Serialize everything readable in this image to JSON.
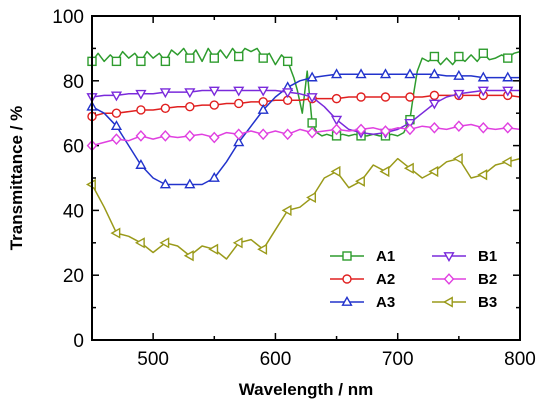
{
  "chart_data": {
    "type": "line",
    "xlabel": "Wavelength / nm",
    "ylabel": "Transmittance / %",
    "xlim": [
      450,
      800
    ],
    "ylim": [
      0,
      100
    ],
    "xticks": [
      500,
      600,
      700,
      800
    ],
    "yticks": [
      0,
      20,
      40,
      60,
      80,
      100
    ],
    "legend_position": "bottom-right",
    "grid": false,
    "series": [
      {
        "name": "A1",
        "color": "#2e9c2e",
        "marker": "square",
        "x": [
          450,
          455,
          460,
          465,
          470,
          475,
          480,
          485,
          490,
          495,
          500,
          505,
          510,
          515,
          520,
          525,
          530,
          535,
          540,
          545,
          550,
          555,
          560,
          565,
          570,
          575,
          580,
          585,
          590,
          595,
          600,
          605,
          610,
          615,
          618,
          622,
          626,
          630,
          634,
          638,
          642,
          646,
          650,
          655,
          660,
          665,
          670,
          675,
          680,
          685,
          690,
          695,
          700,
          705,
          710,
          713,
          716,
          720,
          725,
          730,
          735,
          740,
          745,
          750,
          755,
          760,
          765,
          770,
          775,
          780,
          785,
          790,
          795,
          800
        ],
        "y": [
          86,
          88.5,
          86,
          88,
          86,
          89,
          87,
          88.5,
          86,
          89,
          87,
          88.5,
          86,
          89.5,
          88,
          90,
          87,
          89.5,
          86,
          90,
          87,
          89.5,
          87,
          90,
          87.5,
          90,
          89,
          90,
          87,
          88.5,
          85,
          88,
          86,
          81,
          77,
          70,
          83,
          67,
          64,
          63,
          63.5,
          63,
          63,
          63.5,
          63,
          63.5,
          63,
          63,
          63.5,
          63,
          63,
          63.5,
          63,
          64,
          68,
          76,
          83,
          87,
          86,
          87.5,
          85,
          87,
          85,
          87.5,
          86,
          88,
          86,
          88.5,
          86.5,
          87,
          88,
          87,
          88.5,
          89
        ]
      },
      {
        "name": "A2",
        "color": "#e02020",
        "marker": "circle",
        "x": [
          450,
          460,
          470,
          480,
          490,
          500,
          510,
          520,
          530,
          540,
          550,
          560,
          570,
          580,
          590,
          600,
          610,
          620,
          630,
          640,
          650,
          660,
          670,
          680,
          690,
          700,
          710,
          720,
          730,
          740,
          750,
          760,
          770,
          780,
          790,
          800
        ],
        "y": [
          69,
          70,
          70,
          70.5,
          71,
          71,
          71.5,
          72,
          72,
          72.5,
          72.5,
          73,
          73,
          73.5,
          73.5,
          74,
          74,
          74,
          74.5,
          74.5,
          74.5,
          75,
          75,
          75,
          75,
          75,
          75,
          75,
          75.5,
          75.5,
          75.5,
          75.5,
          75.5,
          75.5,
          75.5,
          75
        ]
      },
      {
        "name": "A3",
        "color": "#2233cc",
        "marker": "triangle-up",
        "x": [
          450,
          460,
          470,
          480,
          490,
          500,
          510,
          520,
          530,
          540,
          550,
          560,
          570,
          580,
          590,
          600,
          610,
          620,
          630,
          640,
          650,
          660,
          670,
          680,
          690,
          700,
          710,
          720,
          730,
          740,
          750,
          760,
          770,
          780,
          790,
          800
        ],
        "y": [
          72,
          70,
          66,
          60,
          54,
          50,
          48,
          48,
          48,
          48,
          50,
          55,
          61,
          66,
          71,
          75,
          78,
          80,
          81,
          81.5,
          82,
          82,
          82,
          82,
          82,
          82,
          82,
          82,
          82,
          81.5,
          81.5,
          81.5,
          81,
          81,
          81,
          81
        ]
      },
      {
        "name": "B1",
        "color": "#7a2adb",
        "marker": "triangle-down",
        "x": [
          450,
          460,
          470,
          480,
          490,
          500,
          510,
          520,
          530,
          540,
          550,
          560,
          570,
          580,
          590,
          600,
          610,
          620,
          630,
          640,
          650,
          660,
          670,
          680,
          690,
          700,
          710,
          720,
          730,
          740,
          750,
          760,
          770,
          780,
          790,
          800
        ],
        "y": [
          75,
          75.5,
          75.5,
          76,
          76,
          76,
          76.5,
          76.5,
          76.5,
          77,
          77,
          77,
          77,
          77,
          77,
          77,
          76.5,
          76,
          75,
          72,
          68,
          65,
          64,
          63.5,
          64,
          65,
          67,
          70,
          73,
          75,
          76,
          76.5,
          77,
          77,
          77,
          77
        ]
      },
      {
        "name": "B2",
        "color": "#e040e0",
        "marker": "diamond",
        "x": [
          450,
          460,
          470,
          480,
          490,
          500,
          510,
          520,
          530,
          540,
          550,
          560,
          570,
          580,
          590,
          600,
          610,
          620,
          630,
          640,
          650,
          660,
          670,
          680,
          690,
          700,
          710,
          720,
          730,
          740,
          750,
          760,
          770,
          780,
          790,
          800
        ],
        "y": [
          60,
          61,
          62,
          61.5,
          63,
          62,
          63,
          62.5,
          63,
          63.5,
          62.5,
          64,
          63.5,
          64.5,
          63.5,
          64.5,
          63.5,
          65,
          64,
          64.5,
          65,
          64.5,
          65,
          65.5,
          64.5,
          65.5,
          65,
          66,
          65.5,
          65,
          66,
          66.5,
          65.5,
          65,
          65.5,
          65
        ]
      },
      {
        "name": "B3",
        "color": "#9a9a1a",
        "marker": "triangle-left",
        "x": [
          450,
          460,
          470,
          480,
          490,
          500,
          510,
          520,
          530,
          540,
          550,
          560,
          570,
          580,
          590,
          600,
          610,
          620,
          630,
          640,
          650,
          660,
          670,
          680,
          690,
          700,
          710,
          720,
          730,
          740,
          750,
          760,
          770,
          780,
          790,
          800
        ],
        "y": [
          48,
          41,
          33,
          32,
          30,
          27,
          30,
          29,
          26,
          29,
          28,
          25,
          30,
          31,
          28,
          34,
          40,
          41,
          44,
          50,
          52,
          47,
          49,
          54,
          52,
          56,
          53,
          50,
          52,
          55,
          56,
          50,
          51,
          54,
          55,
          56
        ]
      }
    ]
  }
}
